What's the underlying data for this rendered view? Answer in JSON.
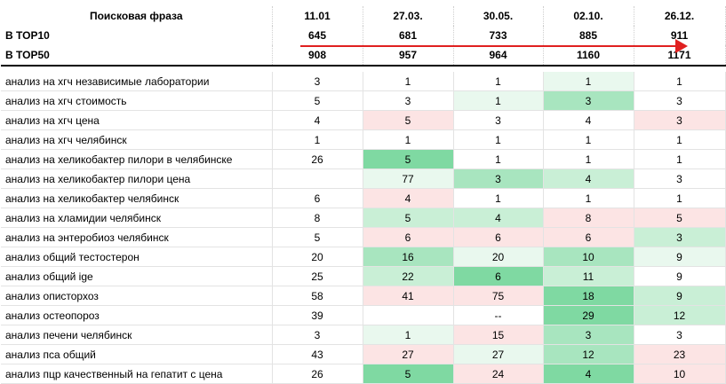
{
  "header": {
    "phrase_label": "Поисковая фраза",
    "dates": [
      "11.01",
      "27.03.",
      "30.05.",
      "02.10.",
      "26.12."
    ]
  },
  "summary": [
    {
      "label": "В TOP10",
      "values": [
        "645",
        "681",
        "733",
        "885",
        "911"
      ]
    },
    {
      "label": "В TOP50",
      "values": [
        "908",
        "957",
        "964",
        "1160",
        "1171"
      ]
    }
  ],
  "trend_arrow_color": "#e02020",
  "cell_colors": {
    "pink": "#fce4e4",
    "green_light": "#e9f8ee",
    "green_mid": "#c9efd6",
    "green": "#a8e5bf",
    "green_dark": "#7fd9a2"
  },
  "rows": [
    {
      "phrase": "анализ на хгч независимые лаборатории",
      "values": [
        "3",
        "1",
        "1",
        "1",
        "1"
      ],
      "colors": [
        "",
        "",
        "",
        "g1",
        ""
      ]
    },
    {
      "phrase": "анализ на хгч стоимость",
      "values": [
        "5",
        "3",
        "1",
        "3",
        "3"
      ],
      "colors": [
        "",
        "",
        "g1",
        "g3",
        ""
      ]
    },
    {
      "phrase": "анализ на хгч цена",
      "values": [
        "4",
        "5",
        "3",
        "4",
        "3"
      ],
      "colors": [
        "",
        "pk",
        "",
        "",
        "pk"
      ]
    },
    {
      "phrase": "анализ на хгч челябинск",
      "values": [
        "1",
        "1",
        "1",
        "1",
        "1"
      ],
      "colors": [
        "",
        "",
        "",
        "",
        ""
      ]
    },
    {
      "phrase": "анализ на хеликобактер пилори в челябинске",
      "values": [
        "26",
        "5",
        "1",
        "1",
        "1"
      ],
      "colors": [
        "",
        "g4",
        "",
        "",
        ""
      ]
    },
    {
      "phrase": "анализ на хеликобактер пилори цена",
      "values": [
        "",
        "77",
        "3",
        "4",
        "3"
      ],
      "colors": [
        "",
        "g1",
        "g3",
        "g2",
        ""
      ]
    },
    {
      "phrase": "анализ на хеликобактер челябинск",
      "values": [
        "6",
        "4",
        "1",
        "1",
        "1"
      ],
      "colors": [
        "",
        "pk",
        "",
        "",
        ""
      ]
    },
    {
      "phrase": "анализ на хламидии челябинск",
      "values": [
        "8",
        "5",
        "4",
        "8",
        "5"
      ],
      "colors": [
        "",
        "g2",
        "g2",
        "pk",
        "pk"
      ]
    },
    {
      "phrase": "анализ на энтеробиоз челябинск",
      "values": [
        "5",
        "6",
        "6",
        "6",
        "3"
      ],
      "colors": [
        "",
        "pk",
        "pk",
        "pk",
        "g2"
      ]
    },
    {
      "phrase": "анализ общий тестостерон",
      "values": [
        "20",
        "16",
        "20",
        "10",
        "9"
      ],
      "colors": [
        "",
        "g3",
        "g1",
        "g3",
        "g1"
      ]
    },
    {
      "phrase": "анализ общий ige",
      "values": [
        "25",
        "22",
        "6",
        "11",
        "9"
      ],
      "colors": [
        "",
        "g2",
        "g4",
        "g2",
        ""
      ]
    },
    {
      "phrase": "анализ описторхоз",
      "values": [
        "58",
        "41",
        "75",
        "18",
        "9"
      ],
      "colors": [
        "",
        "pk",
        "pk",
        "g4",
        "g2"
      ]
    },
    {
      "phrase": "анализ остеопороз",
      "values": [
        "39",
        "",
        "--",
        "29",
        "12"
      ],
      "colors": [
        "",
        "",
        "",
        "g4",
        "g2"
      ]
    },
    {
      "phrase": "анализ печени челябинск",
      "values": [
        "3",
        "1",
        "15",
        "3",
        "3"
      ],
      "colors": [
        "",
        "g1",
        "pk",
        "g3",
        ""
      ]
    },
    {
      "phrase": "анализ пса общий",
      "values": [
        "43",
        "27",
        "27",
        "12",
        "23"
      ],
      "colors": [
        "",
        "pk",
        "g1",
        "g3",
        "pk"
      ]
    },
    {
      "phrase": "анализ пцр качественный на гепатит с цена",
      "values": [
        "26",
        "5",
        "24",
        "4",
        "10"
      ],
      "colors": [
        "",
        "g4",
        "pk",
        "g4",
        "pk"
      ]
    }
  ]
}
